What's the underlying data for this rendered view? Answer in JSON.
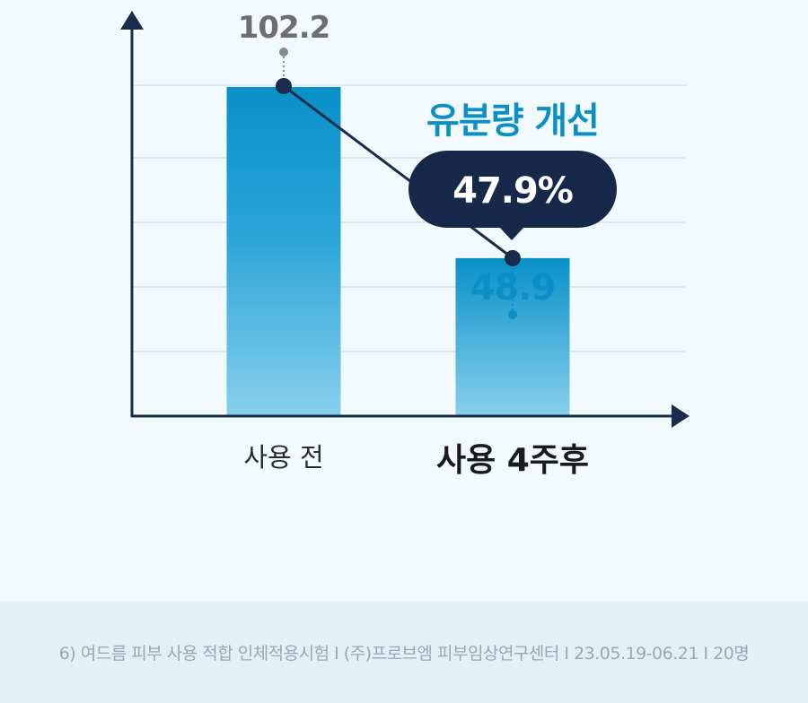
{
  "chart_data": {
    "type": "bar",
    "categories": [
      "사용 전",
      "사용 4주후"
    ],
    "values": [
      102.2,
      48.9
    ],
    "value_labels": [
      "102.2",
      "48.9"
    ],
    "ylim": [
      0,
      102.2
    ],
    "grid": true,
    "connector_line": true,
    "annotation": {
      "title": "유분량 개선",
      "value": "47.9%"
    },
    "colors": {
      "bar_top": "#0891c8",
      "bar_bottom": "#87cfec",
      "axis": "#1a2c4c",
      "line": "#1a2c4c",
      "accent": "#0b8fc4",
      "label_before": "#6e6e6e",
      "callout_bg": "#16294a",
      "grid": "#dfe6ea"
    }
  },
  "footnote": "6) 여드름 피부 사용 적합 인체적용시험 I (주)프로브엠 피부임상연구센터 I 23.05.19-06.21 I 20명"
}
